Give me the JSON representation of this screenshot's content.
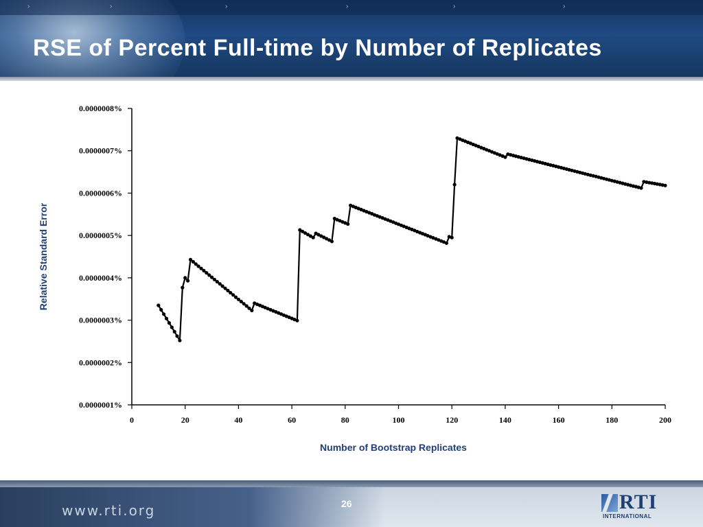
{
  "slide": {
    "title": "RSE of Percent Full-time by Number of Replicates",
    "page_number": "26",
    "footer_url": "www.rti.org",
    "logo_text": "RTI",
    "logo_subtext": "INTERNATIONAL",
    "header_arrow": "›",
    "colors": {
      "header": "#1f4a83",
      "axis_title": "#1f3f78",
      "line": "#000000"
    }
  },
  "chart_data": {
    "type": "line",
    "title": "",
    "xlabel": "Number of Bootstrap Replicates",
    "ylabel": "Relative Standard Error",
    "xlim": [
      0,
      200
    ],
    "ylim": [
      1e-07,
      8e-07
    ],
    "x_ticks": [
      "0",
      "20",
      "40",
      "60",
      "80",
      "100",
      "120",
      "140",
      "160",
      "180",
      "200"
    ],
    "y_ticks": [
      "0.0000001%",
      "0.0000002%",
      "0.0000003%",
      "0.0000004%",
      "0.0000005%",
      "0.0000006%",
      "0.0000007%",
      "0.0000008%"
    ],
    "grid": false,
    "legend": "none",
    "marker": "circle",
    "segments": [
      {
        "start": 10,
        "end": 18,
        "y_start": 3.35e-07,
        "y_end": 2.52e-07
      },
      {
        "start": 19,
        "end": 19,
        "y_start": 3.77e-07,
        "y_end": 3.77e-07
      },
      {
        "start": 20,
        "end": 21,
        "y_start": 4e-07,
        "y_end": 3.93e-07
      },
      {
        "start": 22,
        "end": 45,
        "y_start": 4.43e-07,
        "y_end": 3.23e-07
      },
      {
        "start": 46,
        "end": 62,
        "y_start": 3.4e-07,
        "y_end": 2.99e-07
      },
      {
        "start": 63,
        "end": 68,
        "y_start": 5.13e-07,
        "y_end": 4.95e-07
      },
      {
        "start": 69,
        "end": 75,
        "y_start": 5.05e-07,
        "y_end": 4.86e-07
      },
      {
        "start": 76,
        "end": 81,
        "y_start": 5.4e-07,
        "y_end": 5.27e-07
      },
      {
        "start": 82,
        "end": 118,
        "y_start": 5.71e-07,
        "y_end": 4.82e-07
      },
      {
        "start": 119,
        "end": 120,
        "y_start": 4.97e-07,
        "y_end": 4.95e-07
      },
      {
        "start": 121,
        "end": 121,
        "y_start": 6.2e-07,
        "y_end": 6.2e-07
      },
      {
        "start": 122,
        "end": 140,
        "y_start": 7.3e-07,
        "y_end": 6.85e-07
      },
      {
        "start": 141,
        "end": 191,
        "y_start": 6.92e-07,
        "y_end": 6.12e-07
      },
      {
        "start": 192,
        "end": 200,
        "y_start": 6.27e-07,
        "y_end": 6.18e-07
      }
    ]
  }
}
